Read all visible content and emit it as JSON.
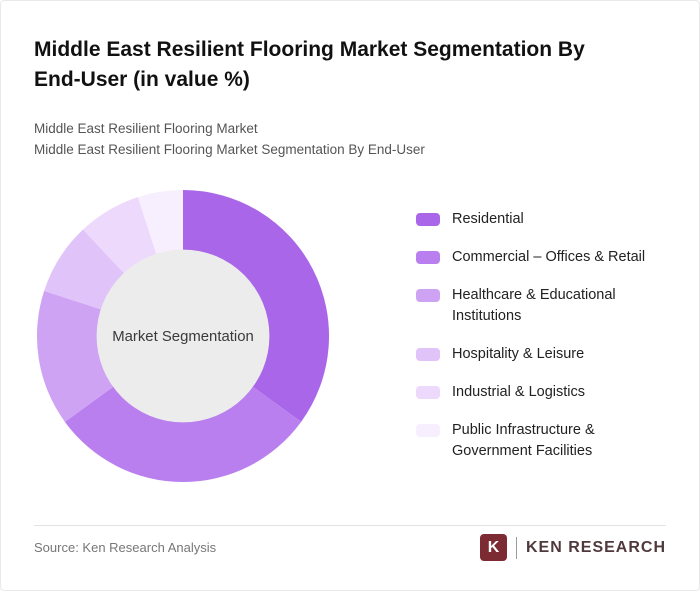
{
  "header": {
    "title": "Middle East Resilient Flooring Market Segmentation By End-User (in value %)",
    "subtitle1": "Middle East Resilient Flooring Market",
    "subtitle2": "Middle East Resilient Flooring Market Segmentation By End-User"
  },
  "chart_data": {
    "type": "pie",
    "variant": "donut",
    "title": "Middle East Resilient Flooring Market Segmentation By End-User (in value %)",
    "center_label": "Market Segmentation",
    "categories": [
      "Residential",
      "Commercial – Offices & Retail",
      "Healthcare & Educational Institutions",
      "Hospitality & Leisure",
      "Industrial & Logistics",
      "Public Infrastructure & Government Facilities"
    ],
    "values": [
      35,
      30,
      15,
      8,
      7,
      5
    ],
    "colors": [
      "#aa66e8",
      "#b97fee",
      "#cfa3f4",
      "#e0c4f9",
      "#edd9fc",
      "#f7eefe"
    ],
    "center_fill": "#ececec",
    "legend_position": "right",
    "start_angle_deg": -90,
    "direction": "clockwise"
  },
  "footer": {
    "source": "Source: Ken Research Analysis",
    "logo_letter": "K",
    "logo_text": "KEN RESEARCH"
  }
}
